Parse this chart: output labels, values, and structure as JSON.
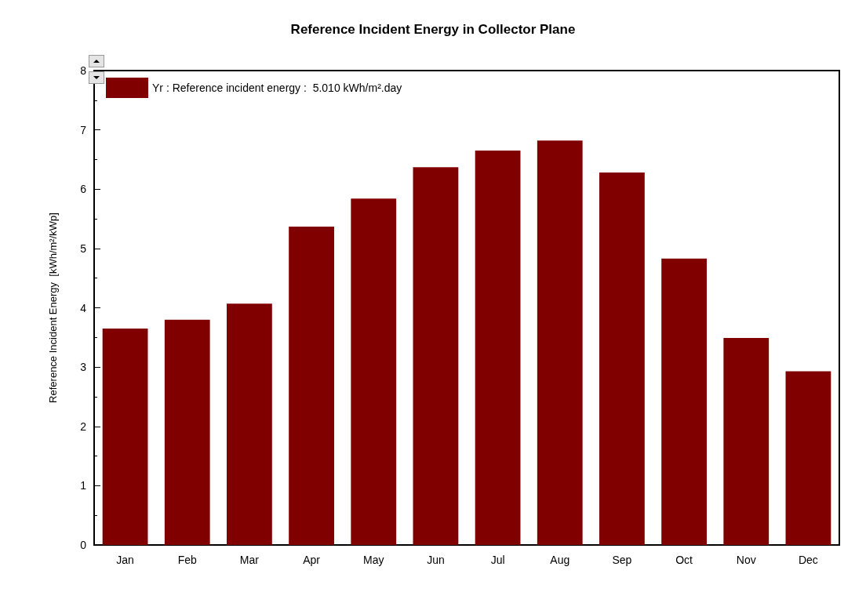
{
  "chart_data": {
    "type": "bar",
    "title": "Reference Incident Energy in Collector Plane",
    "ylabel": "Reference Incident Energy  [kWh/m²/kWp]",
    "categories": [
      "Jan",
      "Feb",
      "Mar",
      "Apr",
      "May",
      "Jun",
      "Jul",
      "Aug",
      "Sep",
      "Oct",
      "Nov",
      "Dec"
    ],
    "series": [
      {
        "name": "Yr : Reference incident energy :  5.010 kWh/m².day",
        "color": "#800000",
        "values": [
          3.65,
          3.8,
          4.07,
          5.37,
          5.84,
          6.37,
          6.65,
          6.82,
          6.28,
          4.83,
          3.49,
          2.93
        ]
      }
    ],
    "ylim": [
      0,
      8
    ],
    "yticks": [
      0,
      1,
      2,
      3,
      4,
      5,
      6,
      7,
      8
    ],
    "grid": false,
    "legend": "top left"
  }
}
